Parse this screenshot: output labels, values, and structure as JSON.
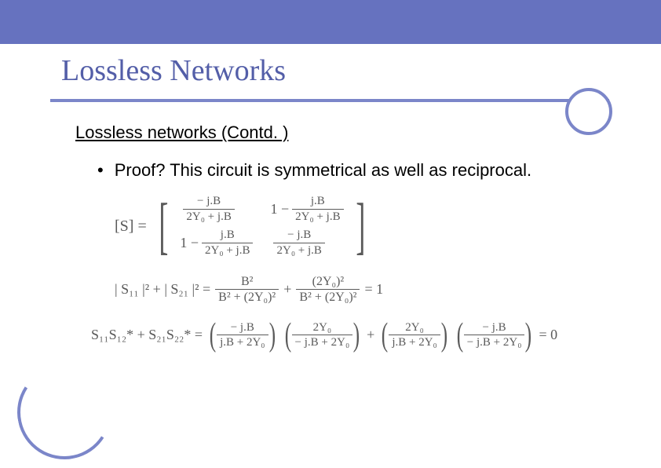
{
  "colors": {
    "band": "#6672bf",
    "accent": "#7b86c9",
    "title": "#535ea8",
    "eq": "#5a5a5a",
    "text": "#000000",
    "bg": "#ffffff"
  },
  "typography": {
    "title_family": "Times New Roman",
    "title_size_pt": 29,
    "body_family": "Arial",
    "body_size_pt": 17,
    "eq_family": "Times New Roman"
  },
  "title": "Lossless Networks",
  "subtitle": "Lossless networks (Contd. )",
  "bullet": "Proof?  This circuit is symmetrical as well as reciprocal.",
  "matrix": {
    "lhs": "[S] =",
    "entries": {
      "e11_prefix": "",
      "e11_num": "− j.B",
      "e11_den": "2Y₀ + j.B",
      "e12_prefix": "1 −",
      "e12_num": "j.B",
      "e12_den": "2Y₀ + j.B",
      "e21_prefix": "1 −",
      "e21_num": "j.B",
      "e21_den": "2Y₀ + j.B",
      "e22_prefix": "",
      "e22_num": "− j.B",
      "e22_den": "2Y₀ + j.B"
    }
  },
  "mag_eq": {
    "lhs": "| S₁₁ |² + | S₂₁ |² =",
    "t1_num": "B²",
    "t1_den": "B² + (2Y₀)²",
    "plus": "+",
    "t2_num": "(2Y₀)²",
    "t2_den": "B² + (2Y₀)²",
    "rhs": "= 1"
  },
  "ortho_eq": {
    "lhs1": "S₁₁",
    "lhs1star": "S₁₂*",
    "lhs_plus": " + ",
    "lhs2": "S₂₁",
    "lhs2star": "S₂₂*",
    "eq": " = ",
    "f1_num": "− j.B",
    "f1_den": "j.B + 2Y₀",
    "f2_num": "2Y₀",
    "f2_den": "− j.B + 2Y₀",
    "mid_plus": " + ",
    "f3_num": "2Y₀",
    "f3_den": "j.B + 2Y₀",
    "f4_num": "− j.B",
    "f4_den": "− j.B + 2Y₀",
    "rhs": " = 0"
  }
}
